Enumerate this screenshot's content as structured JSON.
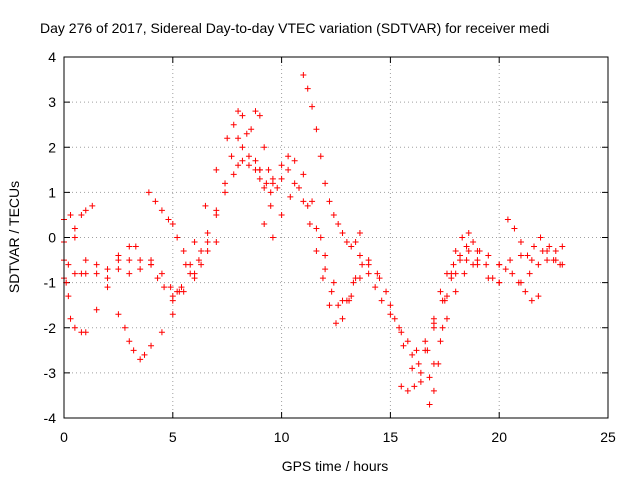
{
  "chart_data": {
    "type": "scatter",
    "title": "Day 276 of 2017, Sidereal Day-to-day VTEC variation (SDTVAR) for receiver medi",
    "xlabel": "GPS time / hours",
    "ylabel": "SDTVAR / TECUs",
    "xlim": [
      0,
      25
    ],
    "ylim": [
      -4,
      4
    ],
    "xticks": [
      0,
      5,
      10,
      15,
      20,
      25
    ],
    "yticks": [
      -4,
      -3,
      -2,
      -1,
      0,
      1,
      2,
      3,
      4
    ],
    "grid": true,
    "marker": "+",
    "color": "#ff0000",
    "series": [
      {
        "x": [
          0.0,
          0.3,
          0.5,
          0.8,
          1.0,
          1.3
        ],
        "y": [
          0.4,
          0.5,
          0.2,
          0.5,
          0.6,
          0.7
        ]
      },
      {
        "x": [
          0.0,
          0.5,
          1.0,
          1.5,
          2.0,
          2.5,
          3.0,
          3.5,
          4.0
        ],
        "y": [
          -0.1,
          0.0,
          -0.5,
          -0.6,
          -0.9,
          -0.5,
          -0.5,
          -0.5,
          -0.6
        ]
      },
      {
        "x": [
          0.0,
          0.2,
          0.5,
          0.8,
          1.0,
          1.5,
          2.0,
          2.5,
          3.0,
          3.3
        ],
        "y": [
          -0.5,
          -0.6,
          -0.8,
          -0.8,
          -0.8,
          -0.8,
          -0.7,
          -0.4,
          -0.2,
          -0.2
        ]
      },
      {
        "x": [
          0.0,
          0.1,
          0.2,
          0.3,
          0.5,
          0.8,
          1.0,
          1.5,
          2.0,
          2.5,
          3.0,
          3.5,
          4.0,
          4.5,
          4.9,
          5.2
        ],
        "y": [
          -0.9,
          -1.0,
          -1.3,
          -1.8,
          -2.0,
          -2.1,
          -2.1,
          -1.6,
          -1.1,
          -0.7,
          -0.8,
          -0.7,
          -0.5,
          -0.8,
          -1.1,
          -1.2
        ]
      },
      {
        "x": [
          2.5,
          2.8,
          3.0,
          3.2,
          3.5,
          3.7,
          4.0,
          4.5,
          5.0,
          5.5,
          6.0,
          6.3,
          6.6,
          7.0,
          7.4,
          7.8,
          8.0,
          8.2,
          8.5,
          8.8,
          9.0,
          9.2,
          9.5
        ],
        "y": [
          -1.7,
          -2.0,
          -2.3,
          -2.5,
          -2.7,
          -2.6,
          -2.4,
          -2.1,
          -1.7,
          -1.2,
          -0.8,
          -0.3,
          0.1,
          0.6,
          1.0,
          1.4,
          1.6,
          1.7,
          1.6,
          1.5,
          1.3,
          1.1,
          1.0
        ]
      },
      {
        "x": [
          3.9,
          4.2,
          4.5,
          4.8,
          5.0,
          5.2,
          5.5,
          5.8,
          6.0,
          6.3,
          6.6,
          7.0,
          7.4,
          7.7,
          8.0,
          8.2,
          8.5,
          8.8,
          9.0
        ],
        "y": [
          1.0,
          0.8,
          0.6,
          0.4,
          0.3,
          0.0,
          -0.3,
          -0.6,
          -0.9,
          -0.6,
          -0.1,
          0.5,
          1.2,
          1.8,
          2.2,
          2.0,
          1.8,
          1.7,
          1.5
        ]
      },
      {
        "x": [
          5.0,
          5.3,
          5.6,
          6.0,
          6.5,
          7.0,
          7.5,
          7.8,
          8.0,
          8.2,
          8.4,
          8.6,
          8.8,
          9.0,
          9.2,
          9.4,
          9.6
        ],
        "y": [
          -1.4,
          -1.2,
          -0.6,
          -0.1,
          0.7,
          1.5,
          2.2,
          2.5,
          2.8,
          2.7,
          2.3,
          2.4,
          2.8,
          2.7,
          2.0,
          1.5,
          1.2
        ]
      },
      {
        "x": [
          4.0,
          4.3,
          4.6,
          5.0,
          5.4,
          5.8,
          6.2,
          6.6,
          7.0
        ],
        "y": [
          -0.6,
          -0.9,
          -1.1,
          -1.3,
          -1.1,
          -0.8,
          -0.5,
          -0.3,
          -0.1
        ]
      },
      {
        "x": [
          9.0,
          9.3,
          9.6,
          10.0,
          10.3,
          10.6,
          11.0,
          11.4,
          11.8,
          12.0,
          12.3,
          12.6,
          13.0,
          13.3,
          13.6,
          14.0,
          14.5,
          15.0,
          15.5,
          16.0,
          16.3,
          16.6,
          17.0,
          17.5,
          18.0,
          18.5,
          19.0,
          19.5,
          20.0
        ],
        "y": [
          1.5,
          1.2,
          1.3,
          1.6,
          1.8,
          1.7,
          1.4,
          0.8,
          0.0,
          -0.7,
          -1.2,
          -1.5,
          -1.4,
          -1.0,
          -0.4,
          -0.5,
          -0.9,
          -1.5,
          -2.1,
          -2.6,
          -2.8,
          -2.5,
          -2.0,
          -1.4,
          -0.8,
          -0.5,
          -0.6,
          -0.9,
          -1.0
        ]
      },
      {
        "x": [
          9.2,
          9.5,
          9.8,
          10.0,
          10.3,
          10.6,
          11.0,
          11.3,
          11.6,
          11.9,
          12.2,
          12.5,
          12.8,
          13.1,
          13.4,
          13.7,
          14.0,
          14.3,
          14.6,
          15.0,
          15.4,
          15.8,
          16.2,
          16.6,
          17.0,
          17.4,
          17.8,
          18.2,
          18.6,
          19.0
        ],
        "y": [
          0.3,
          0.7,
          1.1,
          1.3,
          1.5,
          1.2,
          0.8,
          0.3,
          -0.3,
          -0.9,
          -1.5,
          -1.9,
          -1.8,
          -1.4,
          -0.9,
          -0.6,
          -0.8,
          -1.1,
          -1.4,
          -1.7,
          -2.0,
          -2.3,
          -2.5,
          -2.3,
          -1.9,
          -1.4,
          -0.9,
          -0.5,
          -0.3,
          -0.5
        ]
      },
      {
        "x": [
          9.6,
          10.0,
          10.4,
          10.8,
          11.2,
          11.6,
          12.0,
          12.4,
          12.8,
          13.2,
          13.6,
          14.0,
          14.4,
          14.8,
          15.2,
          15.6,
          16.0,
          16.4,
          16.8,
          17.0,
          17.3,
          17.6,
          18.0,
          18.4,
          18.8
        ],
        "y": [
          0.0,
          0.5,
          0.9,
          1.1,
          0.7,
          0.2,
          -0.4,
          -1.0,
          -1.4,
          -1.3,
          -0.9,
          -0.6,
          -0.8,
          -1.2,
          -1.8,
          -2.4,
          -2.9,
          -3.2,
          -3.1,
          -2.8,
          -2.3,
          -1.8,
          -1.2,
          -0.8,
          -0.6
        ]
      },
      {
        "x": [
          11.0,
          11.2,
          11.4,
          11.6,
          11.8,
          12.0,
          12.2,
          12.4,
          12.6,
          12.8,
          13.0,
          13.2,
          13.4,
          13.6
        ],
        "y": [
          3.6,
          3.3,
          2.9,
          2.4,
          1.8,
          1.2,
          0.8,
          0.5,
          0.3,
          0.1,
          -0.1,
          -0.2,
          -0.1,
          0.1
        ]
      },
      {
        "x": [
          15.5,
          15.8,
          16.1,
          16.4,
          16.7,
          17.0,
          17.3,
          17.6,
          17.9,
          18.2,
          18.5,
          18.8,
          19.1,
          19.4,
          19.7,
          20.0
        ],
        "y": [
          -3.3,
          -3.4,
          -3.3,
          -3.0,
          -2.5,
          -1.8,
          -1.2,
          -0.8,
          -0.6,
          -0.4,
          -0.2,
          -0.1,
          -0.3,
          -0.6,
          -0.9,
          -1.0
        ]
      },
      {
        "x": [
          16.8,
          17.0,
          17.2,
          17.4,
          17.6,
          17.8,
          18.0,
          18.3,
          18.6
        ],
        "y": [
          -3.7,
          -3.4,
          -2.8,
          -2.0,
          -1.3,
          -0.8,
          -0.3,
          0.0,
          0.1
        ]
      },
      {
        "x": [
          19.0,
          19.5,
          20.0,
          20.5,
          21.0,
          21.5,
          22.0,
          22.3,
          22.6,
          22.9
        ],
        "y": [
          -0.3,
          -0.4,
          -0.6,
          -0.5,
          -0.4,
          -0.5,
          -0.3,
          -0.2,
          -0.5,
          -0.6
        ]
      },
      {
        "x": [
          20.4,
          20.7,
          21.0,
          21.3,
          21.6,
          21.9,
          22.2,
          22.5,
          22.8
        ],
        "y": [
          0.4,
          0.2,
          -0.1,
          -0.4,
          -0.2,
          0.0,
          -0.3,
          -0.5,
          -0.6
        ]
      },
      {
        "x": [
          20.0,
          20.3,
          20.6,
          20.9,
          21.2,
          21.5,
          21.8
        ],
        "y": [
          -0.6,
          -0.7,
          -0.8,
          -1.0,
          -1.2,
          -1.4,
          -1.3
        ]
      },
      {
        "x": [
          21.0,
          21.4,
          21.8,
          22.2,
          22.6,
          22.9
        ],
        "y": [
          -1.0,
          -0.8,
          -0.6,
          -0.5,
          -0.3,
          -0.2
        ]
      }
    ]
  }
}
